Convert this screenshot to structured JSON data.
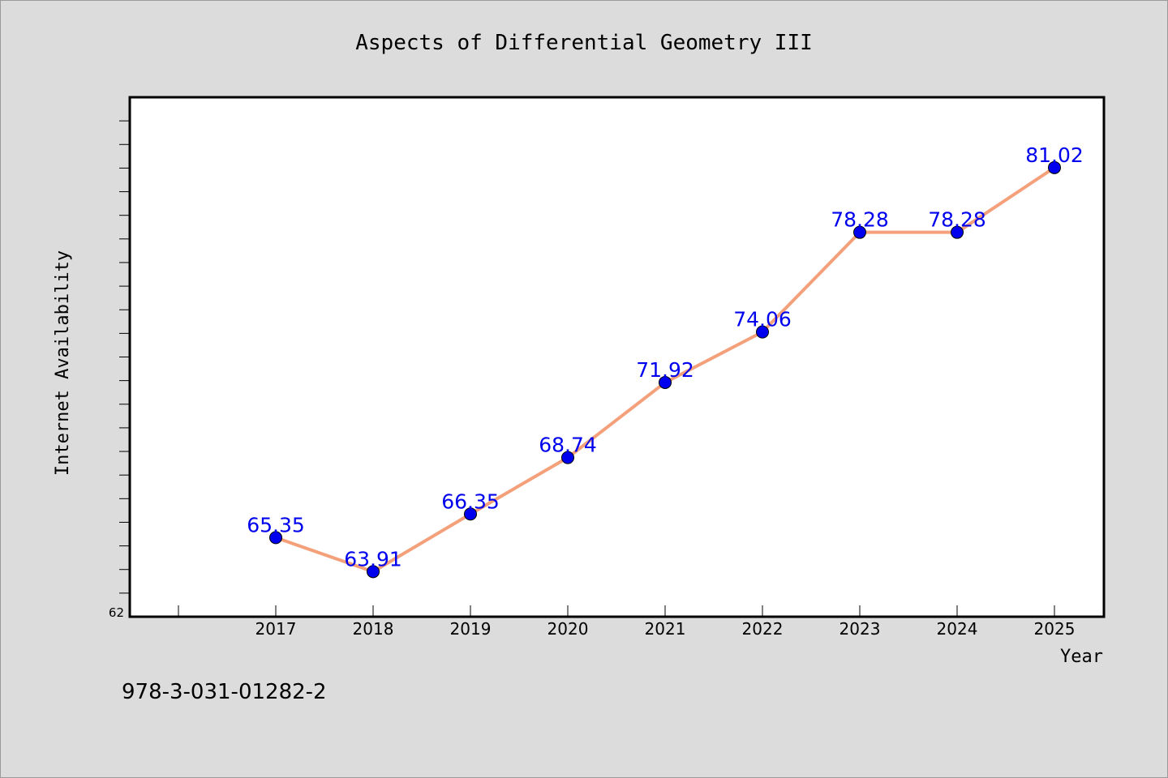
{
  "chart_data": {
    "type": "line",
    "title": "Aspects of Differential Geometry III",
    "xlabel": "Year",
    "ylabel": "Internet Availability",
    "categories": [
      "2017",
      "2018",
      "2019",
      "2020",
      "2021",
      "2022",
      "2023",
      "2024",
      "2025"
    ],
    "series": [
      {
        "values": [
          65.35,
          63.91,
          66.35,
          68.74,
          71.92,
          74.06,
          78.28,
          78.28,
          81.02
        ],
        "labels": [
          "65.35",
          "63.91",
          "66.35",
          "68.74",
          "71.92",
          "74.06",
          "78.28",
          "78.28",
          "81.02"
        ]
      }
    ],
    "ylim": [
      62,
      84
    ],
    "y_tick_labels_shown": [
      "62"
    ],
    "grid": false,
    "legend": "none",
    "colors": {
      "line": "#f4a07a",
      "marker": "#0000ee",
      "data_label": "#0000ee",
      "plot_background": "#ffffff",
      "page_background": "#dcdcdc"
    }
  },
  "footer": {
    "isbn": "978-3-031-01282-2"
  }
}
